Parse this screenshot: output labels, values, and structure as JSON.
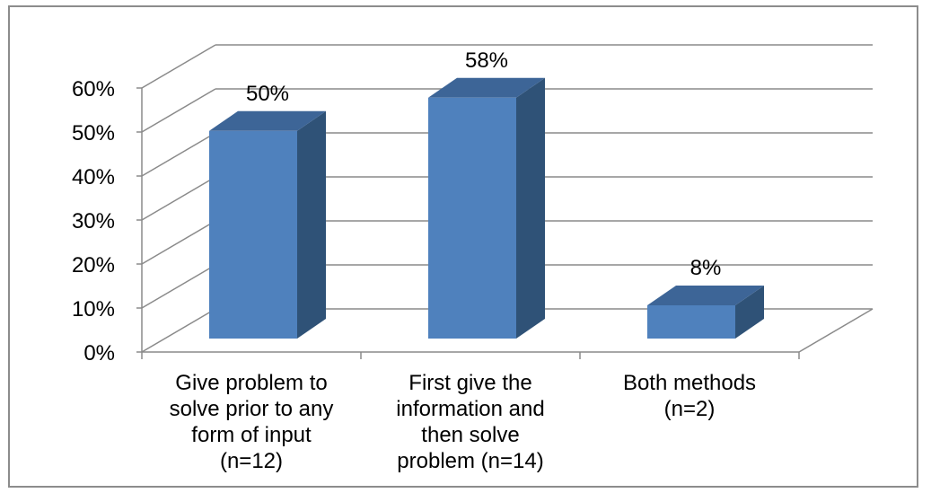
{
  "chart_data": {
    "type": "bar",
    "title": "",
    "xlabel": "",
    "ylabel": "",
    "ylim": [
      0,
      60
    ],
    "yticks": [
      "0%",
      "10%",
      "20%",
      "30%",
      "40%",
      "50%",
      "60%"
    ],
    "ytick_values": [
      0,
      10,
      20,
      30,
      40,
      50,
      60
    ],
    "categories": [
      [
        "Give problem to",
        "solve prior to any",
        "form of input",
        "(n=12)"
      ],
      [
        "First give the",
        "information and",
        "then solve",
        "problem (n=14)"
      ],
      [
        "Both methods",
        "(n=2)"
      ]
    ],
    "values": [
      50,
      58,
      8
    ],
    "data_labels": [
      "50%",
      "58%",
      "8%"
    ],
    "grid": true,
    "legend": "none",
    "style": "3d-column",
    "colors": {
      "bar_front": "#4f81bd",
      "bar_top": "#3d6597",
      "bar_side": "#2f5277",
      "gridline": "#8a8a8a",
      "frame": "#8c8c8c"
    }
  }
}
